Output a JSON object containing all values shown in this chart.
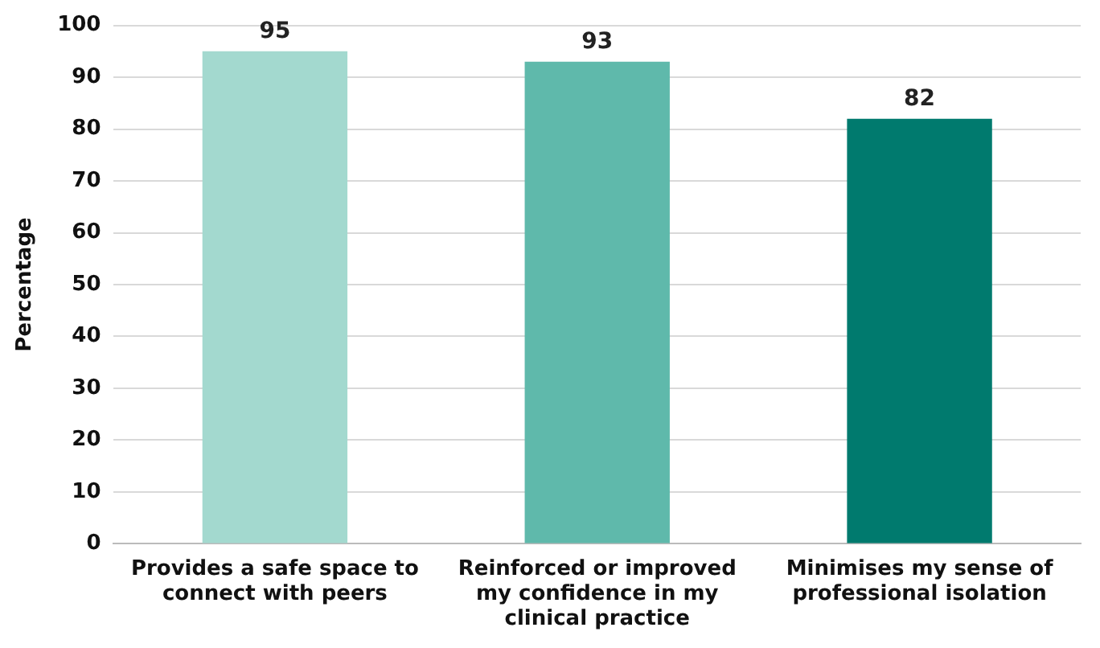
{
  "chart_data": {
    "type": "bar",
    "ylabel": "Percentage",
    "categories": [
      "Provides a safe space to connect with peers",
      "Reinforced or improved my confidence in my clinical practice",
      "Minimises my sense of professional isolation"
    ],
    "values": [
      95,
      93,
      82
    ],
    "colors": [
      "#a3d9cf",
      "#5fb9ab",
      "#007a6e"
    ],
    "ylim": [
      0,
      100
    ],
    "yticks": [
      0,
      10,
      20,
      30,
      40,
      50,
      60,
      70,
      80,
      90,
      100
    ],
    "grid": "y",
    "data_labels": true,
    "legend": false
  }
}
